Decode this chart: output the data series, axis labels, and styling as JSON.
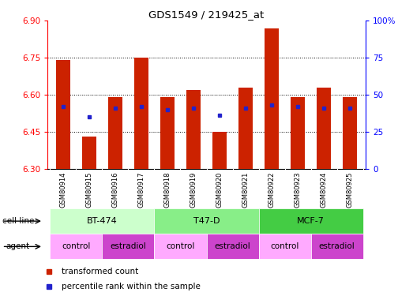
{
  "title": "GDS1549 / 219425_at",
  "samples": [
    "GSM80914",
    "GSM80915",
    "GSM80916",
    "GSM80917",
    "GSM80918",
    "GSM80919",
    "GSM80920",
    "GSM80921",
    "GSM80922",
    "GSM80923",
    "GSM80924",
    "GSM80925"
  ],
  "bar_values": [
    6.74,
    6.43,
    6.59,
    6.75,
    6.59,
    6.62,
    6.45,
    6.63,
    6.87,
    6.59,
    6.63,
    6.59
  ],
  "percentile_values": [
    42,
    35,
    41,
    42,
    40,
    41,
    36,
    41,
    43,
    42,
    41,
    41
  ],
  "ymin": 6.3,
  "ymax": 6.9,
  "yticks_left": [
    6.3,
    6.45,
    6.6,
    6.75,
    6.9
  ],
  "yticks_right": [
    0,
    25,
    50,
    75,
    100
  ],
  "bar_color": "#CC2200",
  "percentile_color": "#2222CC",
  "cell_line_groups": [
    {
      "label": "BT-474",
      "start": 0,
      "end": 3,
      "color": "#CCFFCC"
    },
    {
      "label": "T47-D",
      "start": 4,
      "end": 7,
      "color": "#88EE88"
    },
    {
      "label": "MCF-7",
      "start": 8,
      "end": 11,
      "color": "#44CC44"
    }
  ],
  "agent_groups": [
    {
      "label": "control",
      "start": 0,
      "end": 1,
      "color": "#FFAAFF"
    },
    {
      "label": "estradiol",
      "start": 2,
      "end": 3,
      "color": "#CC44CC"
    },
    {
      "label": "control",
      "start": 4,
      "end": 5,
      "color": "#FFAAFF"
    },
    {
      "label": "estradiol",
      "start": 6,
      "end": 7,
      "color": "#CC44CC"
    },
    {
      "label": "control",
      "start": 8,
      "end": 9,
      "color": "#FFAAFF"
    },
    {
      "label": "estradiol",
      "start": 10,
      "end": 11,
      "color": "#CC44CC"
    }
  ],
  "cell_line_row_label": "cell line",
  "agent_row_label": "agent",
  "legend_red": "transformed count",
  "legend_blue": "percentile rank within the sample"
}
